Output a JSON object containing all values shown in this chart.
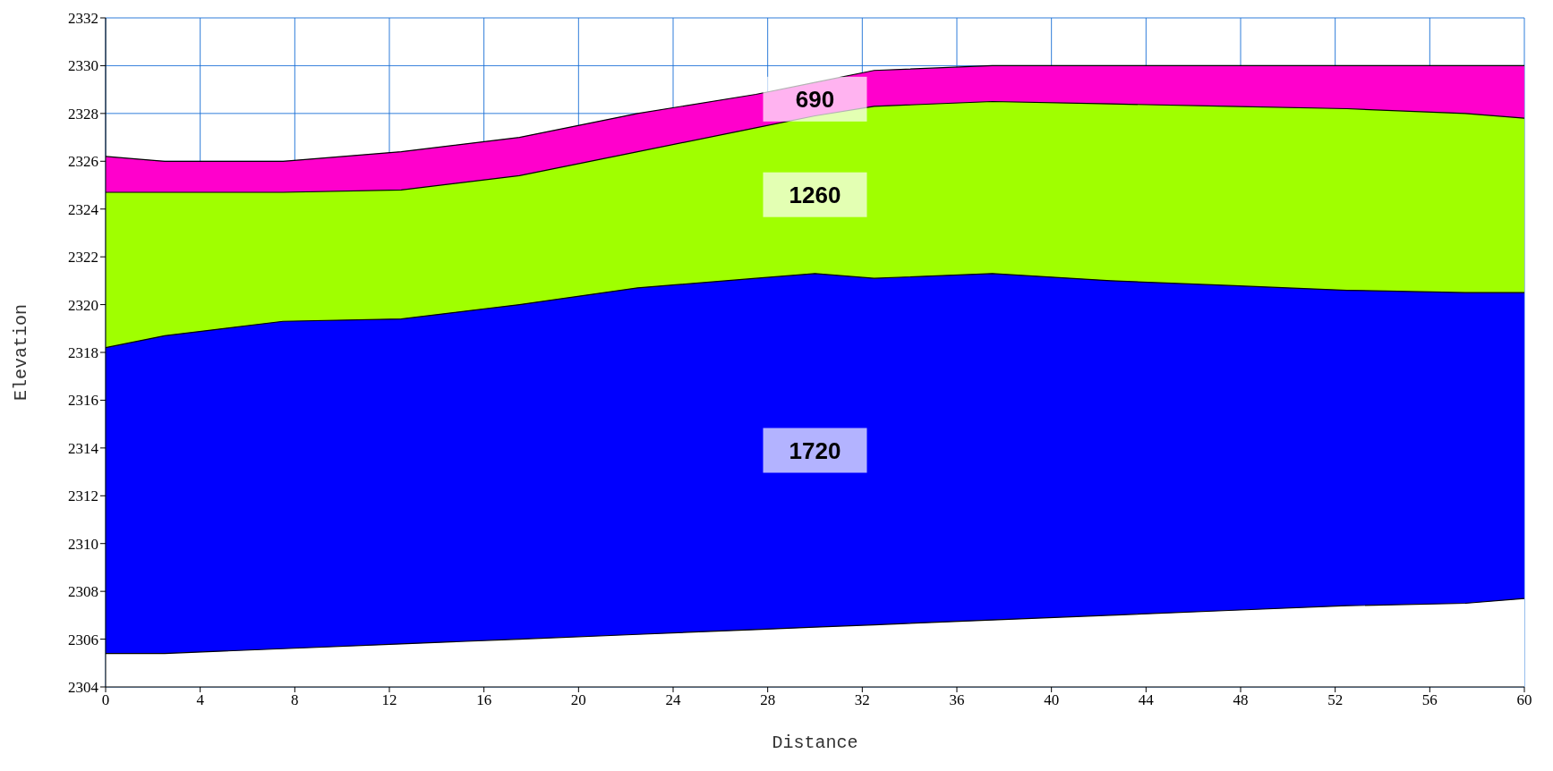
{
  "chart_data": {
    "type": "area",
    "xlabel": "Distance",
    "ylabel": "Elevation",
    "x": [
      0,
      2.5,
      7.5,
      12.5,
      17.5,
      22.5,
      27.5,
      30,
      32.5,
      37.5,
      42.5,
      47.5,
      52.5,
      57.5,
      60
    ],
    "series": [
      {
        "name": "690",
        "color": "#ff00cc",
        "values": [
          2326.2,
          2326.0,
          2326.0,
          2326.4,
          2327.0,
          2328.0,
          2328.8,
          2329.3,
          2329.8,
          2330.0,
          2330.0,
          2330.0,
          2330.0,
          2330.0,
          2330.0
        ]
      },
      {
        "name": "1260",
        "color": "#a0ff00",
        "values": [
          2324.7,
          2324.7,
          2324.7,
          2324.8,
          2325.4,
          2326.4,
          2327.4,
          2327.9,
          2328.3,
          2328.5,
          2328.4,
          2328.3,
          2328.2,
          2328.0,
          2327.8
        ]
      },
      {
        "name": "1720",
        "color": "#0000ff",
        "values": [
          2318.2,
          2318.7,
          2319.3,
          2319.4,
          2320.0,
          2320.7,
          2321.1,
          2321.3,
          2321.1,
          2321.3,
          2321.0,
          2320.8,
          2320.6,
          2320.5,
          2320.5
        ]
      },
      {
        "color": "#ffffff",
        "values": [
          2305.4,
          2305.4,
          2305.6,
          2305.8,
          2306.0,
          2306.2,
          2306.4,
          2306.5,
          2306.6,
          2306.8,
          2307.0,
          2307.2,
          2307.4,
          2307.5,
          2307.7
        ]
      }
    ],
    "xlim": [
      0,
      60
    ],
    "xticks": [
      0,
      4,
      8,
      12,
      16,
      20,
      24,
      28,
      32,
      36,
      40,
      44,
      48,
      52,
      56,
      60
    ],
    "ylim": [
      2304,
      2332
    ],
    "yticks": [
      2304,
      2306,
      2308,
      2310,
      2312,
      2314,
      2316,
      2318,
      2320,
      2322,
      2324,
      2326,
      2328,
      2330,
      2332
    ],
    "grid": true
  }
}
